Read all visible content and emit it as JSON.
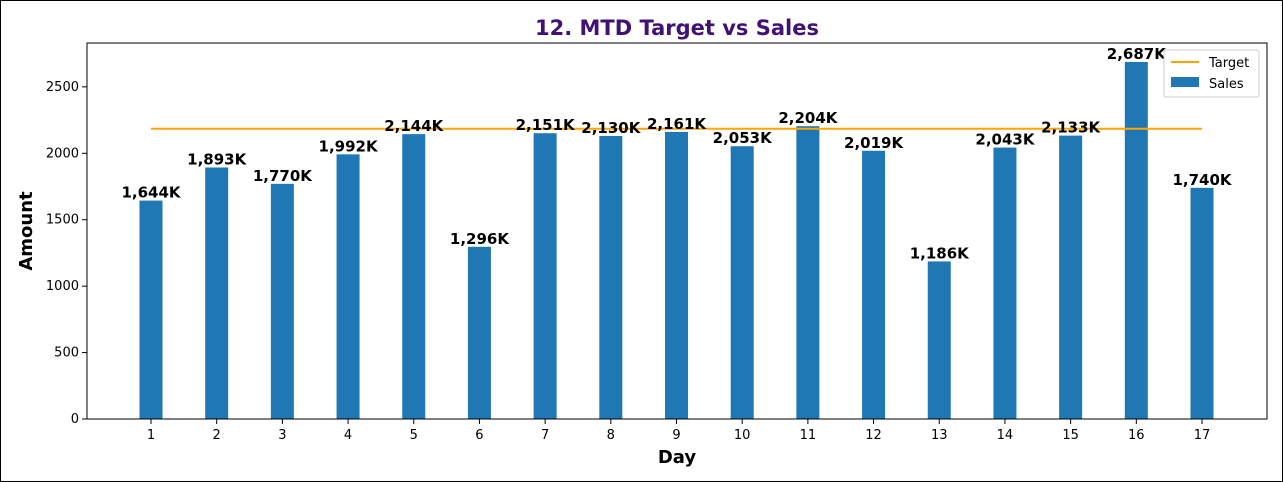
{
  "chart_data": {
    "type": "bar",
    "title": "12. MTD Target vs Sales",
    "xlabel": "Day",
    "ylabel": "Amount",
    "categories": [
      "1",
      "2",
      "3",
      "4",
      "5",
      "6",
      "7",
      "8",
      "9",
      "10",
      "11",
      "12",
      "13",
      "14",
      "15",
      "16",
      "17"
    ],
    "series": [
      {
        "name": "Sales",
        "kind": "bar",
        "values": [
          1644,
          1893,
          1770,
          1992,
          2144,
          1296,
          2151,
          2130,
          2161,
          2053,
          2204,
          2019,
          1186,
          2043,
          2133,
          2687,
          1740
        ],
        "labels": [
          "1,644K",
          "1,893K",
          "1,770K",
          "1,992K",
          "2,144K",
          "1,296K",
          "2,151K",
          "2,130K",
          "2,161K",
          "2,053K",
          "2,204K",
          "2,019K",
          "1,186K",
          "2,043K",
          "2,133K",
          "2,687K",
          "1,740K"
        ]
      },
      {
        "name": "Target",
        "kind": "line",
        "value": 2185
      }
    ],
    "ylim": [
      0,
      2830
    ],
    "yticks": [
      0,
      500,
      1000,
      1500,
      2000,
      2500
    ],
    "legend": "top-right",
    "grid": false,
    "colors": {
      "title": "#3f1274",
      "bar": "#1f77b4",
      "target": "#ffa500",
      "axis": "#000000"
    }
  }
}
